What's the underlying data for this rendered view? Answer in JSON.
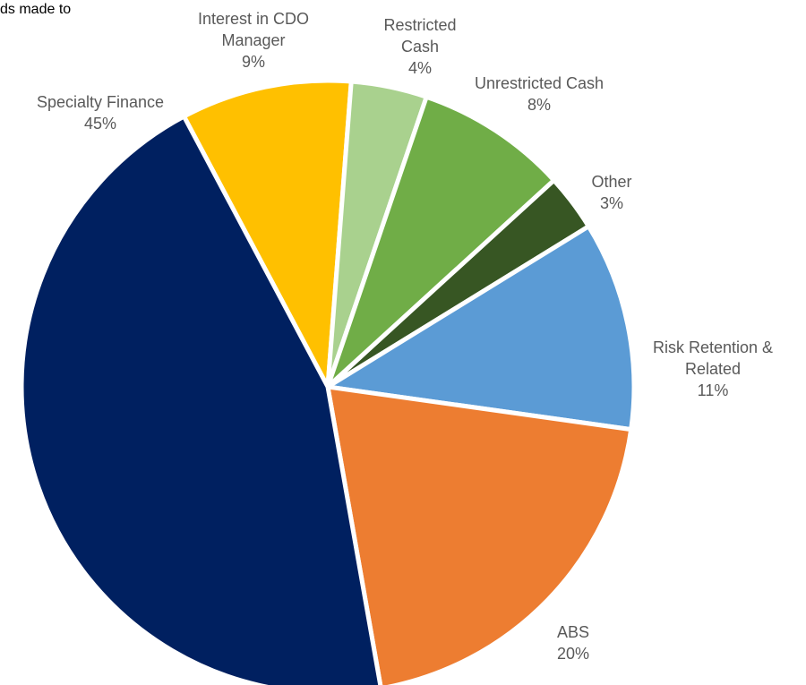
{
  "chart_data": {
    "type": "pie",
    "annotation": "ds made to",
    "categories": [
      "Interest in CDO Manager",
      "Restricted Cash",
      "Unrestricted Cash",
      "Other",
      "Risk Retention & Related",
      "ABS",
      "Specialty Finance"
    ],
    "values": [
      9,
      4,
      8,
      3,
      11,
      20,
      45
    ],
    "value_labels": [
      "9%",
      "4%",
      "8%",
      "3%",
      "11%",
      "20%",
      "45%"
    ],
    "colors": [
      "#ffc000",
      "#a9d18e",
      "#70ad47",
      "#375623",
      "#5b9bd5",
      "#ed7d31",
      "#002060"
    ]
  }
}
